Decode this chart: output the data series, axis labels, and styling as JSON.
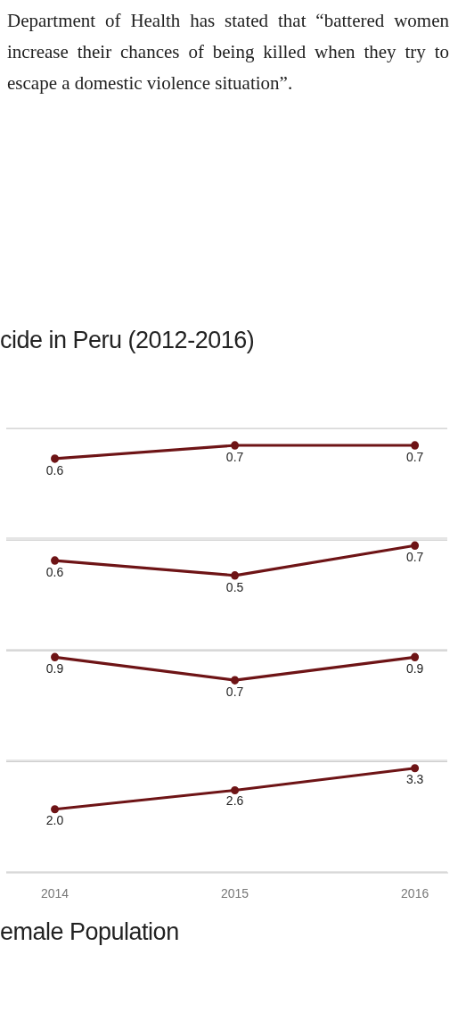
{
  "chart_data": [
    {
      "type": "line",
      "title": "cide in Peru (2012-2016)",
      "annotations": [
        "Department of Health has stated that “battered women increase their chances of being killed when they try to escape a domestic violence situation”."
      ],
      "x": [
        2014,
        2015,
        2016
      ],
      "values": [
        0.6,
        0.7,
        0.7
      ],
      "value_labels": [
        "0.6",
        "0.7",
        "0.7"
      ],
      "color": "#6e1416",
      "xlim": [
        2013.73,
        2016.18
      ],
      "xticks": [
        2014,
        2015,
        2016
      ],
      "ylim": [
        0,
        0.83
      ],
      "tick_labels": false,
      "marker": "circle"
    },
    {
      "type": "line",
      "x": [
        2014,
        2015,
        2016
      ],
      "values": [
        0.6,
        0.5,
        0.7
      ],
      "value_labels": [
        "0.6",
        "0.5",
        "0.7"
      ],
      "color": "#6e1416",
      "xlim": [
        2013.73,
        2016.18
      ],
      "xticks": [
        2014,
        2015,
        2016
      ],
      "ylim": [
        0,
        0.74
      ],
      "tick_labels": false,
      "marker": "circle"
    },
    {
      "type": "line",
      "x": [
        2014,
        2015,
        2016
      ],
      "values": [
        0.9,
        0.7,
        0.9
      ],
      "value_labels": [
        "0.9",
        "0.7",
        "0.9"
      ],
      "color": "#6e1416",
      "xlim": [
        2013.73,
        2016.18
      ],
      "xticks": [
        2014,
        2015,
        2016
      ],
      "ylim": [
        0,
        0.96
      ],
      "tick_labels": false,
      "marker": "circle"
    },
    {
      "type": "line",
      "xlabel": "emale Population",
      "x": [
        2014,
        2015,
        2016
      ],
      "values": [
        2.0,
        2.6,
        3.3
      ],
      "value_labels": [
        "2.0",
        "2.6",
        "3.3"
      ],
      "color": "#6e1416",
      "xlim": [
        2013.73,
        2016.18
      ],
      "xticks": [
        2014,
        2015,
        2016
      ],
      "ylim": [
        0,
        3.52
      ],
      "tick_labels": "x",
      "marker": "circle"
    }
  ]
}
